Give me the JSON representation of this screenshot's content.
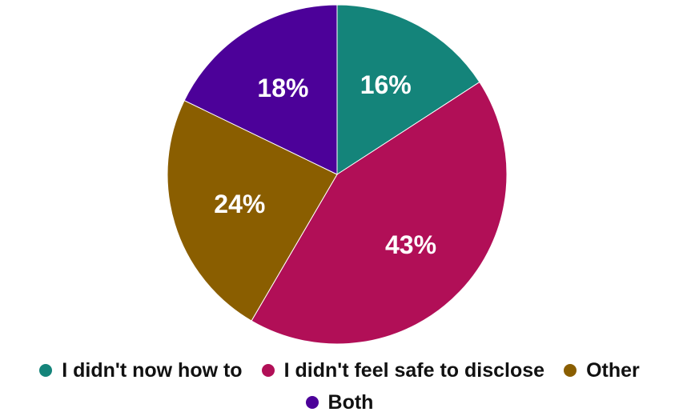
{
  "chart_data": {
    "type": "pie",
    "title": "",
    "categories": [
      "I didn't now how to",
      "I didn't feel safe to disclose",
      "Other",
      "Both"
    ],
    "values": [
      16,
      43,
      24,
      18
    ],
    "labels": [
      "16%",
      "43%",
      "24%",
      "18%"
    ],
    "colors": [
      "#14847a",
      "#b10f57",
      "#8a5e00",
      "#4c0199"
    ],
    "legend": "bottom"
  }
}
